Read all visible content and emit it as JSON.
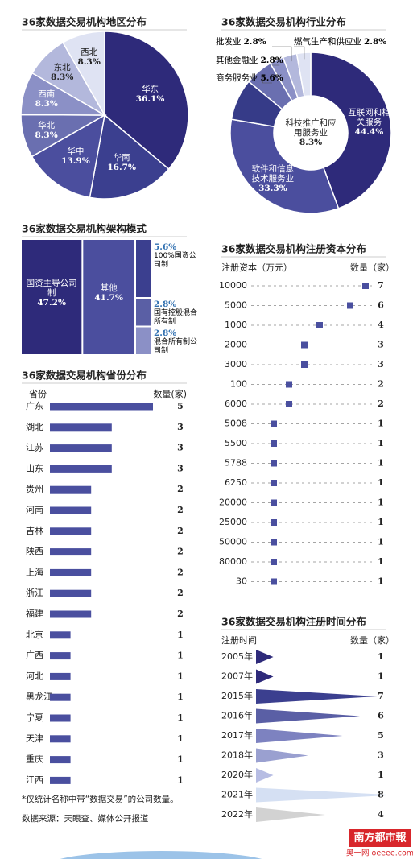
{
  "chart_data": [
    {
      "type": "pie",
      "title": "36家数据交易机构地区分布",
      "categories": [
        "华东",
        "华南",
        "华中",
        "华北",
        "西南",
        "东北",
        "西北"
      ],
      "values": [
        36.1,
        16.7,
        13.9,
        8.3,
        8.3,
        8.3,
        8.3
      ],
      "value_labels": [
        "36.1%",
        "16.7%",
        "13.9%",
        "8.3%",
        "8.3%",
        "8.3%",
        "8.3%"
      ],
      "colors": [
        "#2e2a7a",
        "#3b3f8f",
        "#4b4e9e",
        "#6a6fb0",
        "#8b90c6",
        "#b3b8dc",
        "#dfe3f3"
      ]
    },
    {
      "type": "donut",
      "title": "36家数据交易机构行业分布",
      "categories": [
        "互联网和相关服务",
        "软件和信息技术服务业",
        "科技推广和应用服务业",
        "商务服务业",
        "其他金融业",
        "批发业",
        "燃气生产和供应业"
      ],
      "values": [
        44.4,
        33.3,
        8.3,
        5.6,
        2.8,
        2.8,
        2.8
      ],
      "value_labels": [
        "44.4%",
        "33.3%",
        "8.3%",
        "5.6%",
        "2.8%",
        "2.8%",
        "2.8%"
      ],
      "colors": [
        "#2e2a7a",
        "#4b4e9e",
        "#363b88",
        "#6a6fb0",
        "#8b90c6",
        "#b3b8dc",
        "#dfe3f3"
      ]
    },
    {
      "type": "treemap",
      "title": "36家数据交易机构架构模式",
      "categories": [
        "国资主导公司制",
        "其他",
        "100%国资公司制",
        "国有控股混合所有制",
        "混合所有制公司制"
      ],
      "values": [
        47.2,
        41.7,
        5.6,
        2.8,
        2.8
      ],
      "value_labels": [
        "47.2%",
        "41.7%",
        "5.6%",
        "2.8%",
        "2.8%"
      ],
      "colors": [
        "#2e2a7a",
        "#4b4e9e",
        "#3b3f8f",
        "#5a5fa5",
        "#8b90c6"
      ]
    },
    {
      "type": "hbar",
      "title": "36家数据交易机构省份分布",
      "category_header": "省份",
      "value_header": "数量(家)",
      "categories": [
        "广东",
        "湖北",
        "江苏",
        "山东",
        "贵州",
        "河南",
        "吉林",
        "陕西",
        "上海",
        "浙江",
        "福建",
        "北京",
        "广西",
        "河北",
        "黑龙江",
        "宁夏",
        "天津",
        "重庆",
        "江西"
      ],
      "values": [
        5,
        3,
        3,
        3,
        2,
        2,
        2,
        2,
        2,
        2,
        2,
        1,
        1,
        1,
        1,
        1,
        1,
        1,
        1
      ],
      "color": "#4a4f9f"
    },
    {
      "type": "dot",
      "title": "36家数据交易机构注册资本分布",
      "category_header": "注册资本（万元）",
      "value_header": "数量（家）",
      "categories": [
        "10000",
        "5000",
        "1000",
        "2000",
        "3000",
        "100",
        "6000",
        "5008",
        "5500",
        "5788",
        "6250",
        "20000",
        "25000",
        "50000",
        "80000",
        "30"
      ],
      "values": [
        7,
        6,
        4,
        3,
        3,
        2,
        2,
        1,
        1,
        1,
        1,
        1,
        1,
        1,
        1,
        1
      ],
      "color": "#4a4f9f"
    },
    {
      "type": "triangle",
      "title": "36家数据交易机构注册时间分布",
      "category_header": "注册时间",
      "value_header": "数量（家）",
      "categories": [
        "2005年",
        "2007年",
        "2015年",
        "2016年",
        "2017年",
        "2018年",
        "2020年",
        "2021年",
        "2022年"
      ],
      "values": [
        1,
        1,
        7,
        6,
        5,
        3,
        1,
        8,
        4
      ],
      "colors": [
        "#2e2a7a",
        "#2e2a7a",
        "#3b3f8f",
        "#5a5fa5",
        "#7d82c0",
        "#9aa0d0",
        "#b7bde3",
        "#d5e0f3",
        "#d2d2d2"
      ]
    }
  ],
  "note": "*仅统计名称中带“数据交易”的公司数量。",
  "source": "数据来源：天眼查、媒体公开报道",
  "logo": {
    "name": "南方都市報",
    "site": "奥一网 oeeee.com"
  }
}
